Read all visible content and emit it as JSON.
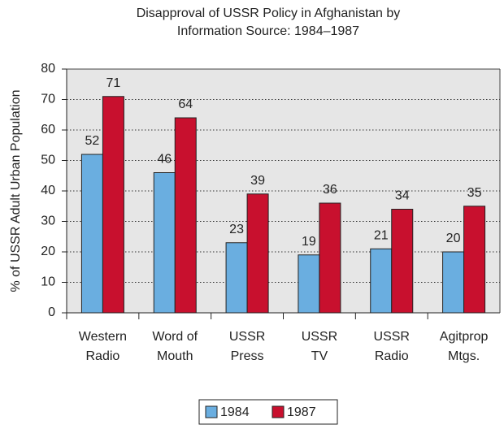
{
  "chart_data": {
    "type": "bar",
    "title": "Disapproval of USSR Policy in Afghanistan by Information Source: 1984–1987",
    "y_label": "% of USSR Adult Urban Population",
    "categories": [
      [
        "Western",
        "Radio"
      ],
      [
        "Word of",
        "Mouth"
      ],
      [
        "USSR",
        "Press"
      ],
      [
        "USSR",
        "TV"
      ],
      [
        "USSR",
        "Radio"
      ],
      [
        "Agitprop",
        "Mtgs."
      ]
    ],
    "series": [
      {
        "name": "1984",
        "color": "#6aaee0",
        "values": [
          52,
          46,
          23,
          19,
          21,
          20
        ]
      },
      {
        "name": "1987",
        "color": "#c8102e",
        "values": [
          71,
          64,
          39,
          36,
          34,
          35
        ]
      }
    ],
    "ylim": [
      0,
      80
    ],
    "yticks": [
      0,
      10,
      20,
      30,
      40,
      50,
      60,
      70,
      80
    ],
    "grid": true,
    "legend": "bottom"
  }
}
